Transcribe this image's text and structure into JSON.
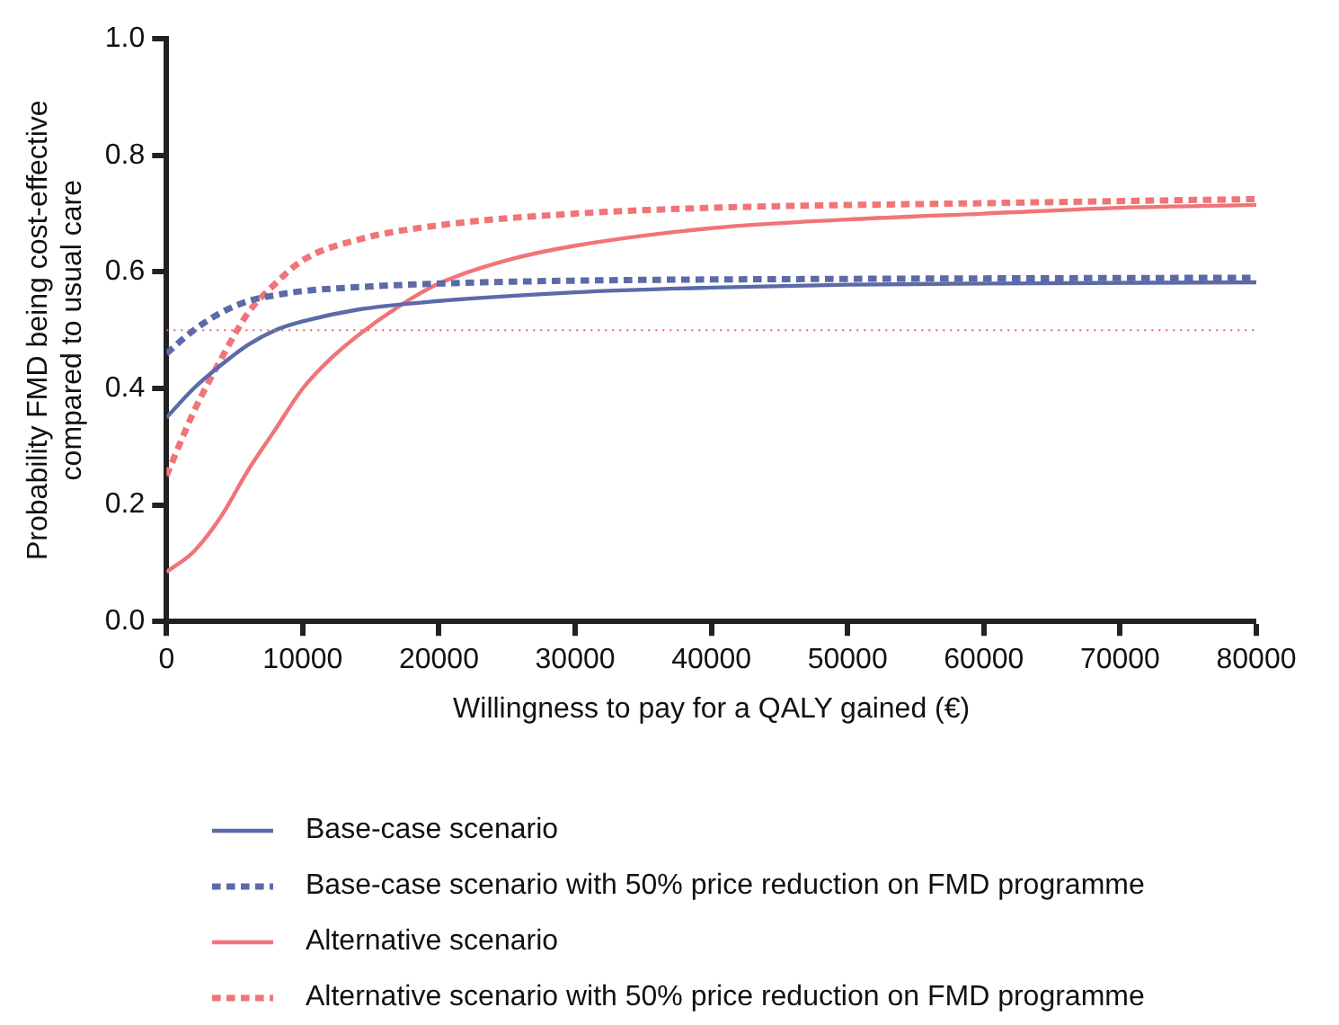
{
  "chart_data": {
    "type": "line",
    "xlabel": "Willingness to pay for a QALY gained (€)",
    "ylabel": "Probability FMD being cost-effective\ncompared to usual care",
    "xlim": [
      0,
      80000
    ],
    "xticks": [
      0,
      10000,
      20000,
      30000,
      40000,
      50000,
      60000,
      70000,
      80000
    ],
    "ylim": [
      0,
      1
    ],
    "yticks": [
      {
        "value": 0,
        "label": "0.0"
      },
      {
        "value": 0.2,
        "label": "0.2"
      },
      {
        "value": 0.4,
        "label": "0.4"
      },
      {
        "value": 0.6,
        "label": "0.6"
      },
      {
        "value": 0.8,
        "label": "0.8"
      },
      {
        "value": 1,
        "label": "1.0"
      }
    ],
    "grid": false,
    "legend": "bottom",
    "marker": "none",
    "ref_lines": [
      {
        "axis": "y",
        "value": 0.5,
        "color": "#e06666",
        "line_style": "dotted"
      }
    ],
    "series": [
      {
        "name": "Base-case scenario",
        "color": "#5b6aa8",
        "line_style": "solid",
        "x": [
          0,
          2000,
          4000,
          6000,
          8000,
          10000,
          14000,
          20000,
          30000,
          40000,
          50000,
          60000,
          80000
        ],
        "values": [
          0.35,
          0.4,
          0.44,
          0.475,
          0.5,
          0.515,
          0.535,
          0.55,
          0.565,
          0.573,
          0.578,
          0.58,
          0.582
        ]
      },
      {
        "name": "Base-case scenario with 50% price reduction on FMD programme",
        "color": "#5b6aa8",
        "line_style": "dashed",
        "x": [
          0,
          2000,
          4000,
          6000,
          8000,
          10000,
          15000,
          20000,
          30000,
          50000,
          80000
        ],
        "values": [
          0.46,
          0.5,
          0.53,
          0.55,
          0.56,
          0.567,
          0.575,
          0.58,
          0.585,
          0.588,
          0.59
        ]
      },
      {
        "name": "Alternative scenario",
        "color": "#f07478",
        "line_style": "solid",
        "x": [
          0,
          2000,
          4000,
          6000,
          8000,
          10000,
          12000,
          14000,
          17000,
          20000,
          25000,
          30000,
          40000,
          50000,
          60000,
          70000,
          80000
        ],
        "values": [
          0.085,
          0.12,
          0.18,
          0.26,
          0.33,
          0.4,
          0.45,
          0.49,
          0.54,
          0.58,
          0.62,
          0.645,
          0.675,
          0.69,
          0.7,
          0.71,
          0.715
        ]
      },
      {
        "name": "Alternative scenario with 50% price reduction on FMD programme",
        "color": "#f07478",
        "line_style": "dashed",
        "x": [
          0,
          2000,
          4000,
          6000,
          8000,
          10000,
          14000,
          20000,
          30000,
          40000,
          60000,
          80000
        ],
        "values": [
          0.25,
          0.36,
          0.45,
          0.53,
          0.58,
          0.62,
          0.655,
          0.68,
          0.7,
          0.71,
          0.718,
          0.725
        ]
      }
    ]
  }
}
